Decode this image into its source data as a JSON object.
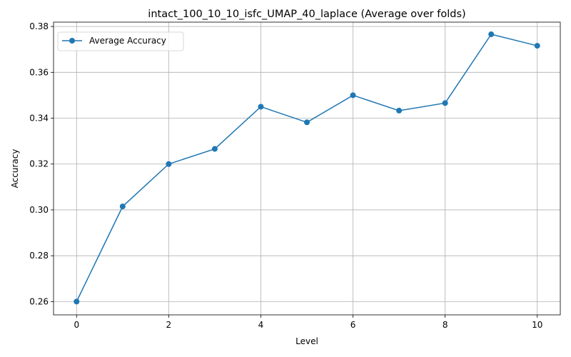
{
  "chart_data": {
    "type": "line",
    "title": "intact_100_10_10_isfc_UMAP_40_laplace (Average over folds)",
    "xlabel": "Level",
    "ylabel": "Accuracy",
    "xlim": [
      -0.5,
      10.5
    ],
    "ylim": [
      0.2542,
      0.3819
    ],
    "xticks": [
      0,
      2,
      4,
      6,
      8,
      10
    ],
    "yticks": [
      0.26,
      0.28,
      0.3,
      0.32,
      0.34,
      0.36,
      0.38
    ],
    "ytick_labels": [
      "0.26",
      "0.28",
      "0.30",
      "0.32",
      "0.34",
      "0.36",
      "0.38"
    ],
    "grid": true,
    "legend_position": "top-left",
    "series": [
      {
        "name": "Average Accuracy",
        "color": "#1f77b4",
        "marker": "circle",
        "x": [
          0,
          1,
          2,
          3,
          4,
          5,
          6,
          7,
          8,
          9,
          10
        ],
        "y": [
          0.26,
          0.3015,
          0.32,
          0.3266,
          0.345,
          0.3382,
          0.35,
          0.3433,
          0.3466,
          0.3766,
          0.3716
        ]
      }
    ]
  }
}
